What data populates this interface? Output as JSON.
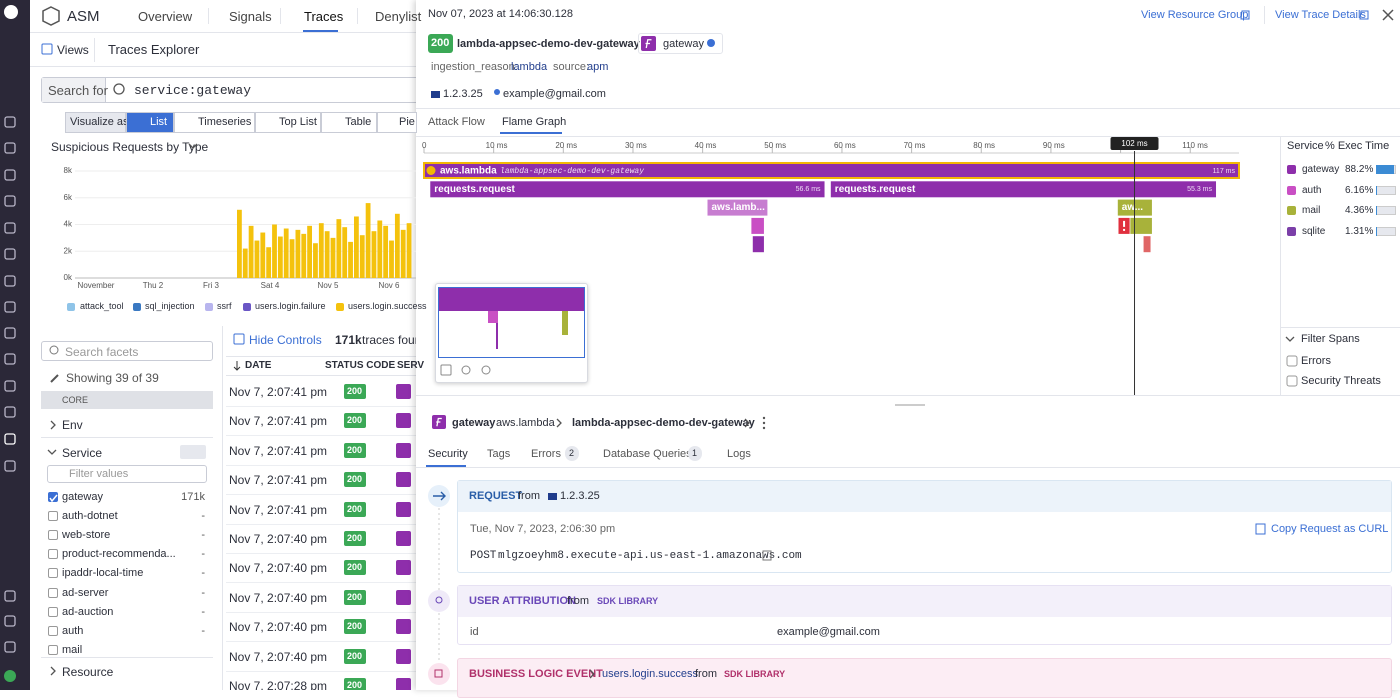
{
  "nav": {
    "app": "ASM",
    "tabs": [
      "Overview",
      "Signals",
      "Traces",
      "Denylist"
    ]
  },
  "subnav": {
    "views": "Views",
    "title": "Traces Explorer"
  },
  "search": {
    "label": "Search for",
    "query": "service:gateway"
  },
  "visualize": {
    "label": "Visualize as",
    "options": [
      "List",
      "Timeseries",
      "Top List",
      "Table",
      "Pie"
    ]
  },
  "histogram": {
    "title": "Suspicious Requests by Type",
    "ylim": [
      0,
      8000
    ],
    "yticks": [
      {
        "value": 0,
        "label": "0k"
      },
      {
        "value": 2000,
        "label": "2k"
      },
      {
        "value": 4000,
        "label": "4k"
      },
      {
        "value": 6000,
        "label": "6k"
      },
      {
        "value": 8000,
        "label": "8k"
      }
    ],
    "x_labels": [
      "November",
      "Thu 2",
      "Fri 3",
      "Sat 4",
      "Nov 5",
      "Nov 6"
    ],
    "legend": [
      {
        "name": "attack_tool",
        "color": "#8fc4e8"
      },
      {
        "name": "sql_injection",
        "color": "#3a79c2"
      },
      {
        "name": "ssrf",
        "color": "#b8b5ee"
      },
      {
        "name": "users.login.failure",
        "color": "#6a56c5"
      },
      {
        "name": "users.login.success",
        "color": "#f4c20d"
      }
    ],
    "bar_color": "#f4c20d",
    "values": [
      5100,
      2200,
      3900,
      2800,
      3400,
      2300,
      4000,
      3100,
      3700,
      2900,
      3600,
      3300,
      3900,
      2600,
      4100,
      3500,
      3000,
      4400,
      3800,
      2700,
      4600,
      3200,
      5600,
      3500,
      4300,
      3900,
      2800,
      4800,
      3600,
      4100
    ]
  },
  "facets": {
    "search": "Search facets",
    "showing": "Showing 39 of 39",
    "group": "CORE",
    "env": "Env",
    "service": "Service",
    "filter": "Filter values",
    "values": [
      {
        "name": "gateway",
        "count": "171k",
        "checked": true
      },
      {
        "name": "auth-dotnet",
        "count": "-"
      },
      {
        "name": "web-store",
        "count": "-"
      },
      {
        "name": "product-recommenda...",
        "count": "-"
      },
      {
        "name": "ipaddr-local-time",
        "count": "-"
      },
      {
        "name": "ad-server",
        "count": "-"
      },
      {
        "name": "ad-auction",
        "count": "-"
      },
      {
        "name": "auth",
        "count": "-"
      },
      {
        "name": "mail"
      }
    ],
    "resource": "Resource"
  },
  "list": {
    "hide_controls": "Hide Controls",
    "count": "171k",
    "count_suffix": "traces found",
    "columns": [
      "DATE",
      "STATUS CODE",
      "SERV"
    ],
    "rows": [
      {
        "date": "Nov 7, 2:07:41 pm",
        "status": 200
      },
      {
        "date": "Nov 7, 2:07:41 pm",
        "status": 200
      },
      {
        "date": "Nov 7, 2:07:41 pm",
        "status": 200
      },
      {
        "date": "Nov 7, 2:07:41 pm",
        "status": 200
      },
      {
        "date": "Nov 7, 2:07:41 pm",
        "status": 200
      },
      {
        "date": "Nov 7, 2:07:40 pm",
        "status": 200
      },
      {
        "date": "Nov 7, 2:07:40 pm",
        "status": 200
      },
      {
        "date": "Nov 7, 2:07:40 pm",
        "status": 200
      },
      {
        "date": "Nov 7, 2:07:40 pm",
        "status": 200
      },
      {
        "date": "Nov 7, 2:07:40 pm",
        "status": 200
      },
      {
        "date": "Nov 7, 2:07:28 pm",
        "status": 200
      }
    ]
  },
  "trace": {
    "timestamp": "Nov 07, 2023 at 14:06:30.128",
    "links": [
      "View Resource Group",
      "View Trace Details"
    ],
    "status": 200,
    "resource": "lambda-appsec-demo-dev-gateway",
    "service": "gateway",
    "tags": [
      {
        "key": "ingestion_reason:",
        "value": "lambda"
      },
      {
        "key": "source:",
        "value": "apm"
      }
    ],
    "ip": "1.2.3.25",
    "user": "example@gmail.com",
    "tabs": [
      "Attack Flow",
      "Flame Graph"
    ],
    "flame": {
      "xlim": [
        0,
        117
      ],
      "xticks": [
        0,
        {
          "value": 10,
          "label": "10 ms"
        },
        {
          "value": 20,
          "label": "20 ms"
        },
        {
          "value": 30,
          "label": "30 ms"
        },
        {
          "value": 40,
          "label": "40 ms"
        },
        {
          "value": 50,
          "label": "50 ms"
        },
        {
          "value": 60,
          "label": "60 ms"
        },
        {
          "value": 70,
          "label": "70 ms"
        },
        {
          "value": 80,
          "label": "80 ms"
        },
        {
          "value": 90,
          "label": "90 ms"
        },
        {
          "value": 100,
          "label": "100 ms"
        },
        {
          "value": 110,
          "label": "110 ms"
        }
      ],
      "cursor": {
        "value": 102,
        "label": "102 ms"
      },
      "spans": [
        {
          "name": "aws.lambda",
          "resource": "lambda-appsec-demo-dev-gateway",
          "start": 0,
          "duration": 117,
          "duration_label": "117 ms",
          "depth": 0,
          "color": "#8e2eab",
          "selected": true
        },
        {
          "name": "requests.request",
          "start": 0.9,
          "duration": 56.6,
          "duration_label": "56.6 ms",
          "depth": 1,
          "color": "#8e2eab"
        },
        {
          "name": "requests.request",
          "start": 58.4,
          "duration": 55.3,
          "duration_label": "55.3 ms",
          "depth": 1,
          "color": "#8e2eab"
        },
        {
          "name": "aws.lamb...",
          "start": 40.7,
          "duration": 8.6,
          "depth": 2,
          "color": "#c77dd0"
        },
        {
          "start": 47.0,
          "duration": 1.8,
          "depth": 3,
          "color": "#c94fc4"
        },
        {
          "start": 47.2,
          "duration": 1.6,
          "depth": 4,
          "color": "#8e2eab"
        },
        {
          "name": "aw...",
          "start": 99.6,
          "duration": 4.9,
          "depth": 2,
          "color": "#a8b23a"
        },
        {
          "start": 99.7,
          "duration": 1.6,
          "depth": 3,
          "color": "#e0303e",
          "error": true
        },
        {
          "start": 101.4,
          "duration": 3.1,
          "depth": 3,
          "color": "#a8b23a"
        },
        {
          "start": 103.3,
          "duration": 1.0,
          "depth": 4,
          "color": "#e06666"
        }
      ]
    },
    "breakdown": {
      "columns": [
        "Service",
        "% Exec Time"
      ],
      "rows": [
        {
          "name": "gateway",
          "color": "#8e2eab",
          "value": 88.2,
          "label": "88.2%"
        },
        {
          "name": "auth",
          "color": "#c94fc4",
          "value": 6.16,
          "label": "6.16%"
        },
        {
          "name": "mail",
          "color": "#a8b23a",
          "value": 4.36,
          "label": "4.36%"
        },
        {
          "name": "sqlite",
          "color": "#7b3fa8",
          "value": 1.31,
          "label": "1.31%"
        }
      ]
    },
    "filter": {
      "title": "Filter Spans",
      "options": [
        "Errors",
        "Security Threats"
      ]
    }
  },
  "span_detail": {
    "service": "gateway",
    "operation": "aws.lambda",
    "resource": "lambda-appsec-demo-dev-gateway",
    "tabs": [
      {
        "name": "Security"
      },
      {
        "name": "Tags"
      },
      {
        "name": "Errors",
        "count": 2
      },
      {
        "name": "Database Queries",
        "count": 1
      },
      {
        "name": "Logs"
      }
    ],
    "request": {
      "title": "REQUEST",
      "from": "from",
      "ip": "1.2.3.25",
      "time": "Tue, Nov 7, 2023, 2:06:30 pm",
      "copy": "Copy Request as CURL",
      "method": "POST",
      "url": "mlgzoeyhm8.execute-api.us-east-1.amazonaws.com"
    },
    "user": {
      "title": "USER ATTRIBUTION",
      "from": "from",
      "source": "SDK LIBRARY",
      "key": "id",
      "value": "example@gmail.com"
    },
    "business": {
      "title": "BUSINESS LOGIC EVENT",
      "event": "users.login.success",
      "from": "from",
      "source": "SDK LIBRARY"
    }
  }
}
